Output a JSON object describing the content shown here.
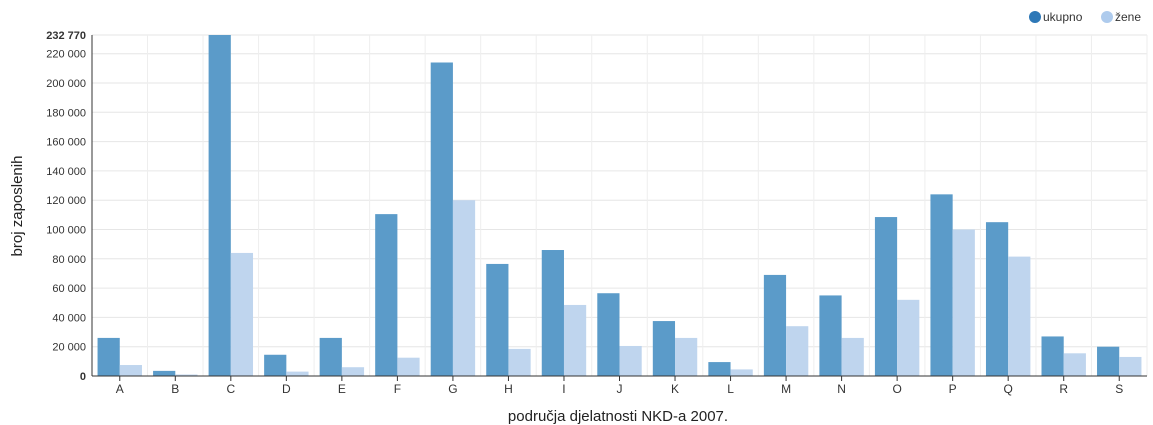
{
  "chart_data": {
    "type": "bar",
    "categories": [
      "A",
      "B",
      "C",
      "D",
      "E",
      "F",
      "G",
      "H",
      "I",
      "J",
      "K",
      "L",
      "M",
      "N",
      "O",
      "P",
      "Q",
      "R",
      "S"
    ],
    "series": [
      {
        "name": "ukupno",
        "color": "#5b9bc9",
        "values": [
          26000,
          3500,
          232770,
          14500,
          26000,
          110500,
          214000,
          76500,
          86000,
          56500,
          37500,
          9500,
          69000,
          55000,
          108500,
          124000,
          105000,
          27000,
          20000
        ]
      },
      {
        "name": "žene",
        "color": "#bfd5ee",
        "values": [
          7500,
          1000,
          84000,
          3000,
          6000,
          12500,
          120000,
          18500,
          48500,
          20500,
          26000,
          4500,
          34000,
          26000,
          52000,
          100000,
          81500,
          15500,
          13000
        ]
      }
    ],
    "title": "",
    "xlabel": "područja djelatnosti NKD-a 2007.",
    "ylabel": "broj zaposlenih",
    "ylim": [
      0,
      232770
    ],
    "yticks": [
      0,
      20000,
      40000,
      60000,
      80000,
      100000,
      120000,
      140000,
      160000,
      180000,
      200000,
      220000
    ],
    "ytick_labels": [
      "0",
      "20 000",
      "40 000",
      "60 000",
      "80 000",
      "100 000",
      "120 000",
      "140 000",
      "160 000",
      "180 000",
      "200 000",
      "220 000"
    ],
    "ymax_label": "232 770",
    "grid": true,
    "legend_position": "top-right",
    "legend": [
      {
        "label": "ukupno",
        "color": "#2e78b7"
      },
      {
        "label": "žene",
        "color": "#aecbed"
      }
    ]
  }
}
